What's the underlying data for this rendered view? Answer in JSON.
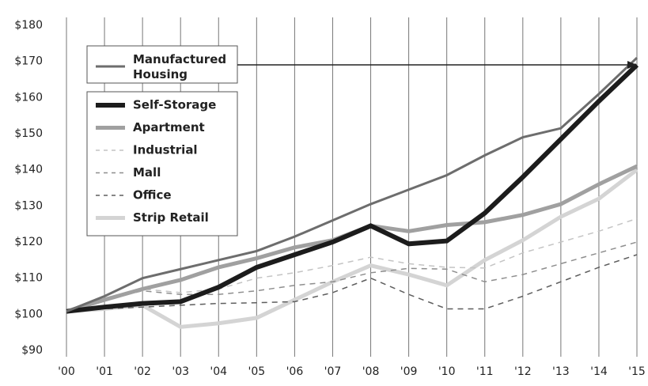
{
  "chart_data": {
    "type": "line",
    "categories": [
      "'00",
      "'01",
      "'02",
      "'03",
      "'04",
      "'05",
      "'06",
      "'07",
      "'08",
      "'09",
      "'10",
      "'11",
      "'12",
      "'13",
      "'14",
      "'15"
    ],
    "ylim": [
      90,
      180
    ],
    "yticks": [
      {
        "value": 90,
        "label": "$90"
      },
      {
        "value": 100,
        "label": "$100"
      },
      {
        "value": 110,
        "label": "$110"
      },
      {
        "value": 120,
        "label": "$120"
      },
      {
        "value": 130,
        "label": "$130"
      },
      {
        "value": 140,
        "label": "$140"
      },
      {
        "value": 150,
        "label": "$150"
      },
      {
        "value": 160,
        "label": "$160"
      },
      {
        "value": 170,
        "label": "$170"
      },
      {
        "value": 180,
        "label": "$180"
      }
    ],
    "series": [
      {
        "name": "Manufactured Housing",
        "color": "#6d6d6d",
        "dashed": false,
        "values": [
          100.8,
          105,
          110,
          112.5,
          115,
          117.5,
          121.5,
          126,
          130.5,
          134.5,
          138.5,
          144,
          149,
          151.5,
          161,
          171
        ]
      },
      {
        "name": "Self-Storage",
        "color": "#1c1c1c",
        "dashed": false,
        "values": [
          100.8,
          102,
          103,
          103.5,
          107.5,
          113,
          116.5,
          120,
          124.5,
          119.5,
          120.3,
          128,
          138,
          148.5,
          159,
          169
        ]
      },
      {
        "name": "Apartment",
        "color": "#a0a0a0",
        "dashed": false,
        "values": [
          100.8,
          104,
          107,
          109.5,
          113,
          115.5,
          118.5,
          120.5,
          124.5,
          123,
          124.7,
          125.5,
          127.5,
          130.5,
          136,
          141
        ]
      },
      {
        "name": "Industrial",
        "color": "#c4c4c4",
        "dashed": true,
        "values": [
          100.8,
          104.5,
          107,
          106,
          107,
          110,
          111.5,
          113.5,
          115.8,
          114,
          113,
          112.8,
          117,
          120,
          123,
          126.5
        ]
      },
      {
        "name": "Mall",
        "color": "#8e8e8e",
        "dashed": true,
        "values": [
          100.8,
          104,
          106.5,
          105.5,
          105.5,
          106.5,
          108,
          109,
          111.5,
          112.7,
          112.5,
          109,
          111,
          114,
          117,
          120
        ]
      },
      {
        "name": "Office",
        "color": "#5e5e5e",
        "dashed": true,
        "values": [
          100.8,
          101.5,
          102,
          102.5,
          103,
          103.2,
          103.5,
          106,
          110,
          105.5,
          101.5,
          101.5,
          105,
          109,
          113,
          116.5
        ]
      },
      {
        "name": "Strip Retail",
        "color": "#d4d4d4",
        "dashed": false,
        "values": [
          100.8,
          101.5,
          102.5,
          96.5,
          97.5,
          99,
          104,
          109,
          113.5,
          111,
          108,
          115,
          120.5,
          127,
          132,
          140
        ]
      }
    ]
  }
}
